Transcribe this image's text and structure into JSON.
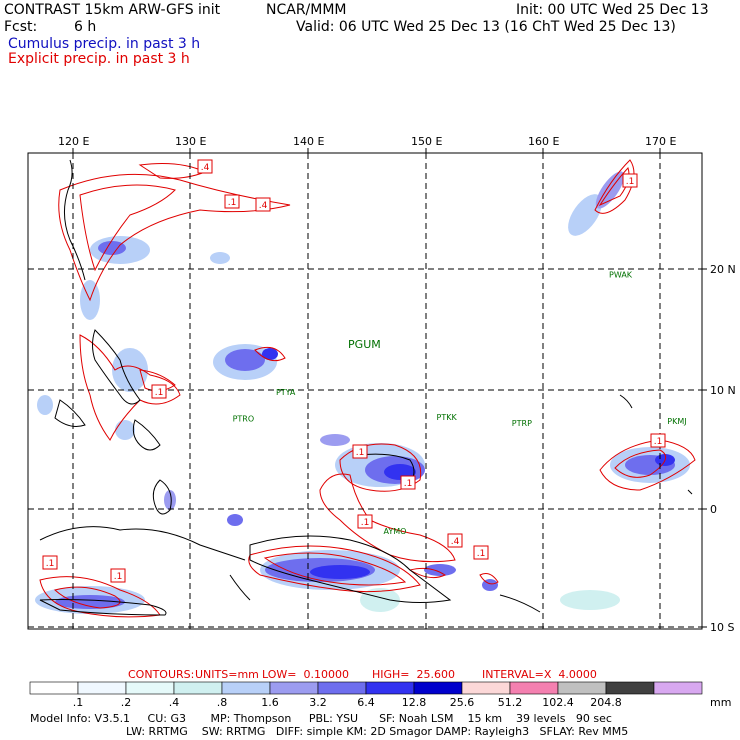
{
  "header": {
    "line1_left": "CONTRAST 15km ARW-GFS init",
    "line1_mid": "NCAR/MMM",
    "line1_right": "Init: 00 UTC Wed 25 Dec 13",
    "line2_left": "Fcst:",
    "line2_hours": "6 h",
    "line2_right": "Valid: 06 UTC Wed 25 Dec 13 (16 ChT Wed 25 Dec 13)",
    "legend_cumulus": "Cumulus precip. in past 3 h",
    "legend_explicit": "Explicit precip. in past 3 h"
  },
  "map": {
    "lon_labels": [
      "120 E",
      "130 E",
      "140 E",
      "150 E",
      "160 E",
      "170 E"
    ],
    "lat_labels": [
      "20 N",
      "10 N",
      "0",
      "10 S"
    ],
    "stations": [
      {
        "id": "PGUM",
        "lon": 144.8,
        "lat": 13.4
      },
      {
        "id": "PTYA",
        "lon": 138.1,
        "lat": 9.5
      },
      {
        "id": "PTRO",
        "lon": 134.5,
        "lat": 7.3
      },
      {
        "id": "PTKK",
        "lon": 151.8,
        "lat": 7.4
      },
      {
        "id": "PTRP",
        "lon": 158.2,
        "lat": 6.9
      },
      {
        "id": "PKMJ",
        "lon": 171.4,
        "lat": 7.1
      },
      {
        "id": "PWAK",
        "lon": 166.6,
        "lat": 19.3
      },
      {
        "id": "AYMO",
        "lon": 147.4,
        "lat": -2.1
      }
    ],
    "contour_labels": [
      ".4",
      ".1",
      ".4",
      ".1",
      ".1",
      ".1",
      ".1",
      ".1",
      ".4",
      ".1",
      ".1",
      ".1",
      ".1"
    ],
    "colors": {
      "explicit": "#e00000",
      "cumulus": "#1010c0",
      "grid": "#000000"
    }
  },
  "contours_line": {
    "contours": "CONTOURS:",
    "units": "UNITS=mm",
    "low": "LOW=  0.10000",
    "high": "HIGH=  25.600",
    "interval": "INTERVAL=X  4.0000"
  },
  "colorbar": {
    "ticks": [
      ".1",
      ".2",
      ".4",
      ".8",
      "1.6",
      "3.2",
      "6.4",
      "12.8",
      "25.6",
      "51.2",
      "102.4",
      "204.8"
    ],
    "units": "mm",
    "colors": [
      "#ffffff",
      "#f0f8ff",
      "#e6fafa",
      "#d0f0f0",
      "#b8d0f8",
      "#9c9cf0",
      "#6e6eee",
      "#3232f0",
      "#0000cc",
      "#fcd8d8",
      "#f480b0",
      "#c0c0c0",
      "#404040",
      "#d8a8f0"
    ]
  },
  "footer": {
    "line1": "Model Info: V3.5.1     CU: G3       MP: Thompson     PBL: YSU      SF: Noah LSM    15 km    39 levels   90 sec",
    "line2": "LW: RRTMG    SW: RRTMG   DIFF: simple KM: 2D Smagor DAMP: Rayleigh3   SFLAY: Rev MM5"
  }
}
